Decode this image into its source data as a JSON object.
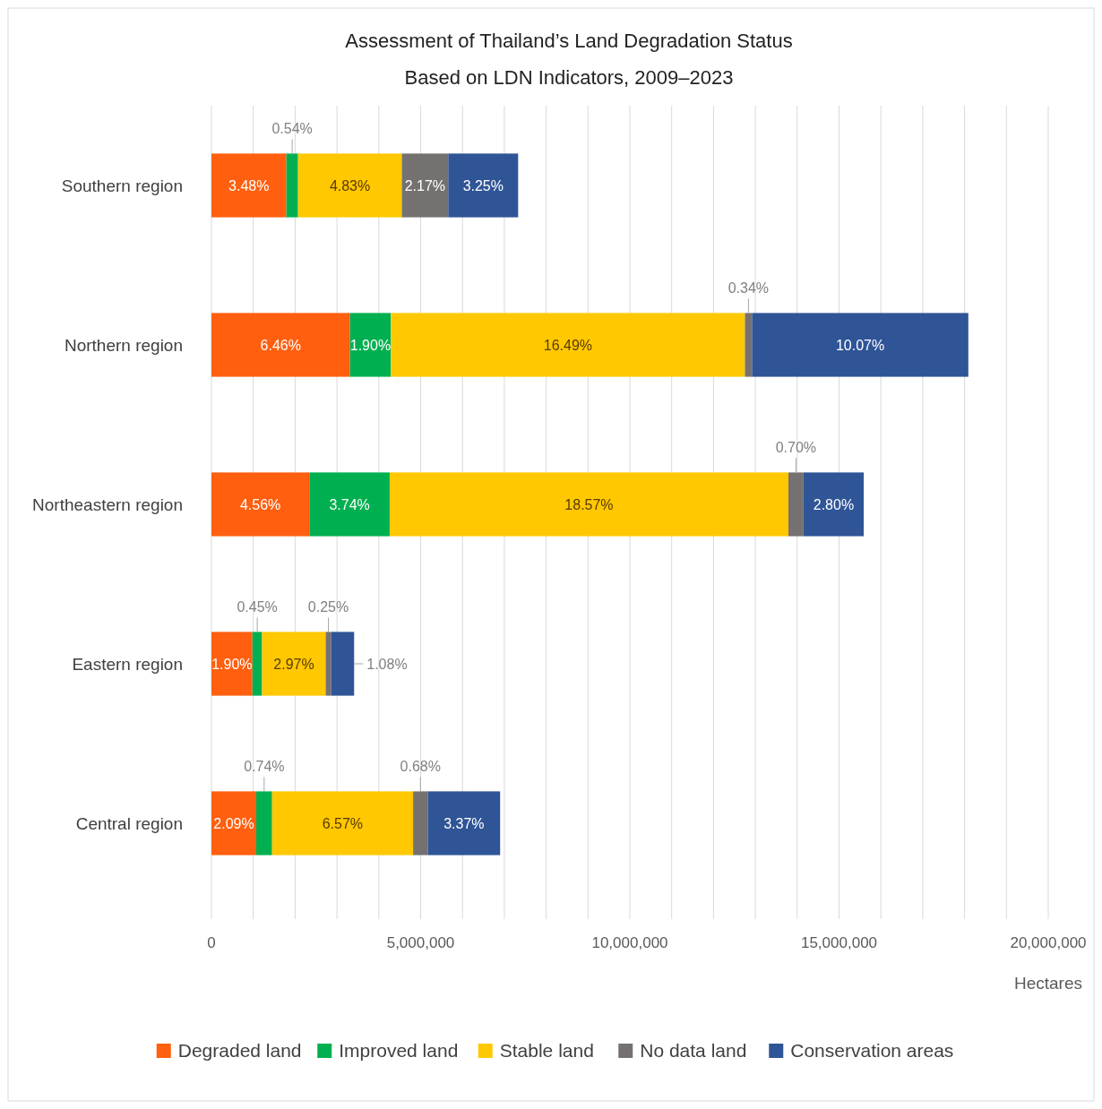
{
  "chart_data": {
    "type": "bar",
    "orientation": "horizontal",
    "stacked": true,
    "title": "Assessment of Thailand’s Land Degradation Status",
    "subtitle": "Based on LDN Indicators, 2009–2023",
    "xlabel": "Hectares",
    "categories": [
      "Southern region",
      "Northern region",
      "Northeastern region",
      "Eastern region",
      "Central region"
    ],
    "series": [
      {
        "name": "Degraded land",
        "color": "#ff5f0f",
        "values": [
          1790000,
          3310000,
          2340000,
          980000,
          1070000
        ]
      },
      {
        "name": "Improved land",
        "color": "#00b050",
        "values": [
          280000,
          980000,
          1920000,
          230000,
          380000
        ]
      },
      {
        "name": "Stable land",
        "color": "#ffc800",
        "values": [
          2480000,
          8460000,
          9530000,
          1520000,
          3370000
        ]
      },
      {
        "name": "No data land",
        "color": "#767171",
        "values": [
          1110000,
          170000,
          360000,
          130000,
          350000
        ]
      },
      {
        "name": "Conservation areas",
        "color": "#2f5597",
        "values": [
          1670000,
          5170000,
          1440000,
          550000,
          1730000
        ]
      }
    ],
    "annotations": [
      "3.48%",
      "0.54%",
      "4.83%",
      "2.17%",
      "3.25%",
      "6.46%",
      "1.90%",
      "16.49%",
      "0.34%",
      "10.07%",
      "4.56%",
      "3.74%",
      "18.57%",
      "0.70%",
      "2.80%",
      "1.90%",
      "0.45%",
      "2.97%",
      "0.25%",
      "1.08%",
      "2.09%",
      "0.74%",
      "6.57%",
      "0.68%",
      "3.37%"
    ],
    "xlim": [
      0,
      20000000
    ],
    "xticks": [
      0,
      {
        "value": 1000000,
        "label": null
      },
      {
        "value": 2000000,
        "label": null
      },
      {
        "value": 3000000,
        "label": null
      },
      {
        "value": 4000000,
        "label": null
      },
      {
        "value": 5000000,
        "label": "5,000,000"
      },
      {
        "value": 6000000,
        "label": null
      },
      {
        "value": 7000000,
        "label": null
      },
      {
        "value": 8000000,
        "label": null
      },
      {
        "value": 9000000,
        "label": null
      },
      {
        "value": 10000000,
        "label": "10,000,000"
      },
      {
        "value": 11000000,
        "label": null
      },
      {
        "value": 12000000,
        "label": null
      },
      {
        "value": 13000000,
        "label": null
      },
      {
        "value": 14000000,
        "label": null
      },
      {
        "value": 15000000,
        "label": "15,000,000"
      },
      {
        "value": 16000000,
        "label": null
      },
      {
        "value": 17000000,
        "label": null
      },
      {
        "value": 18000000,
        "label": null
      },
      {
        "value": 19000000,
        "label": null
      },
      {
        "value": 20000000,
        "label": "20,000,000"
      }
    ],
    "grid": "x",
    "legend": "bottom"
  }
}
